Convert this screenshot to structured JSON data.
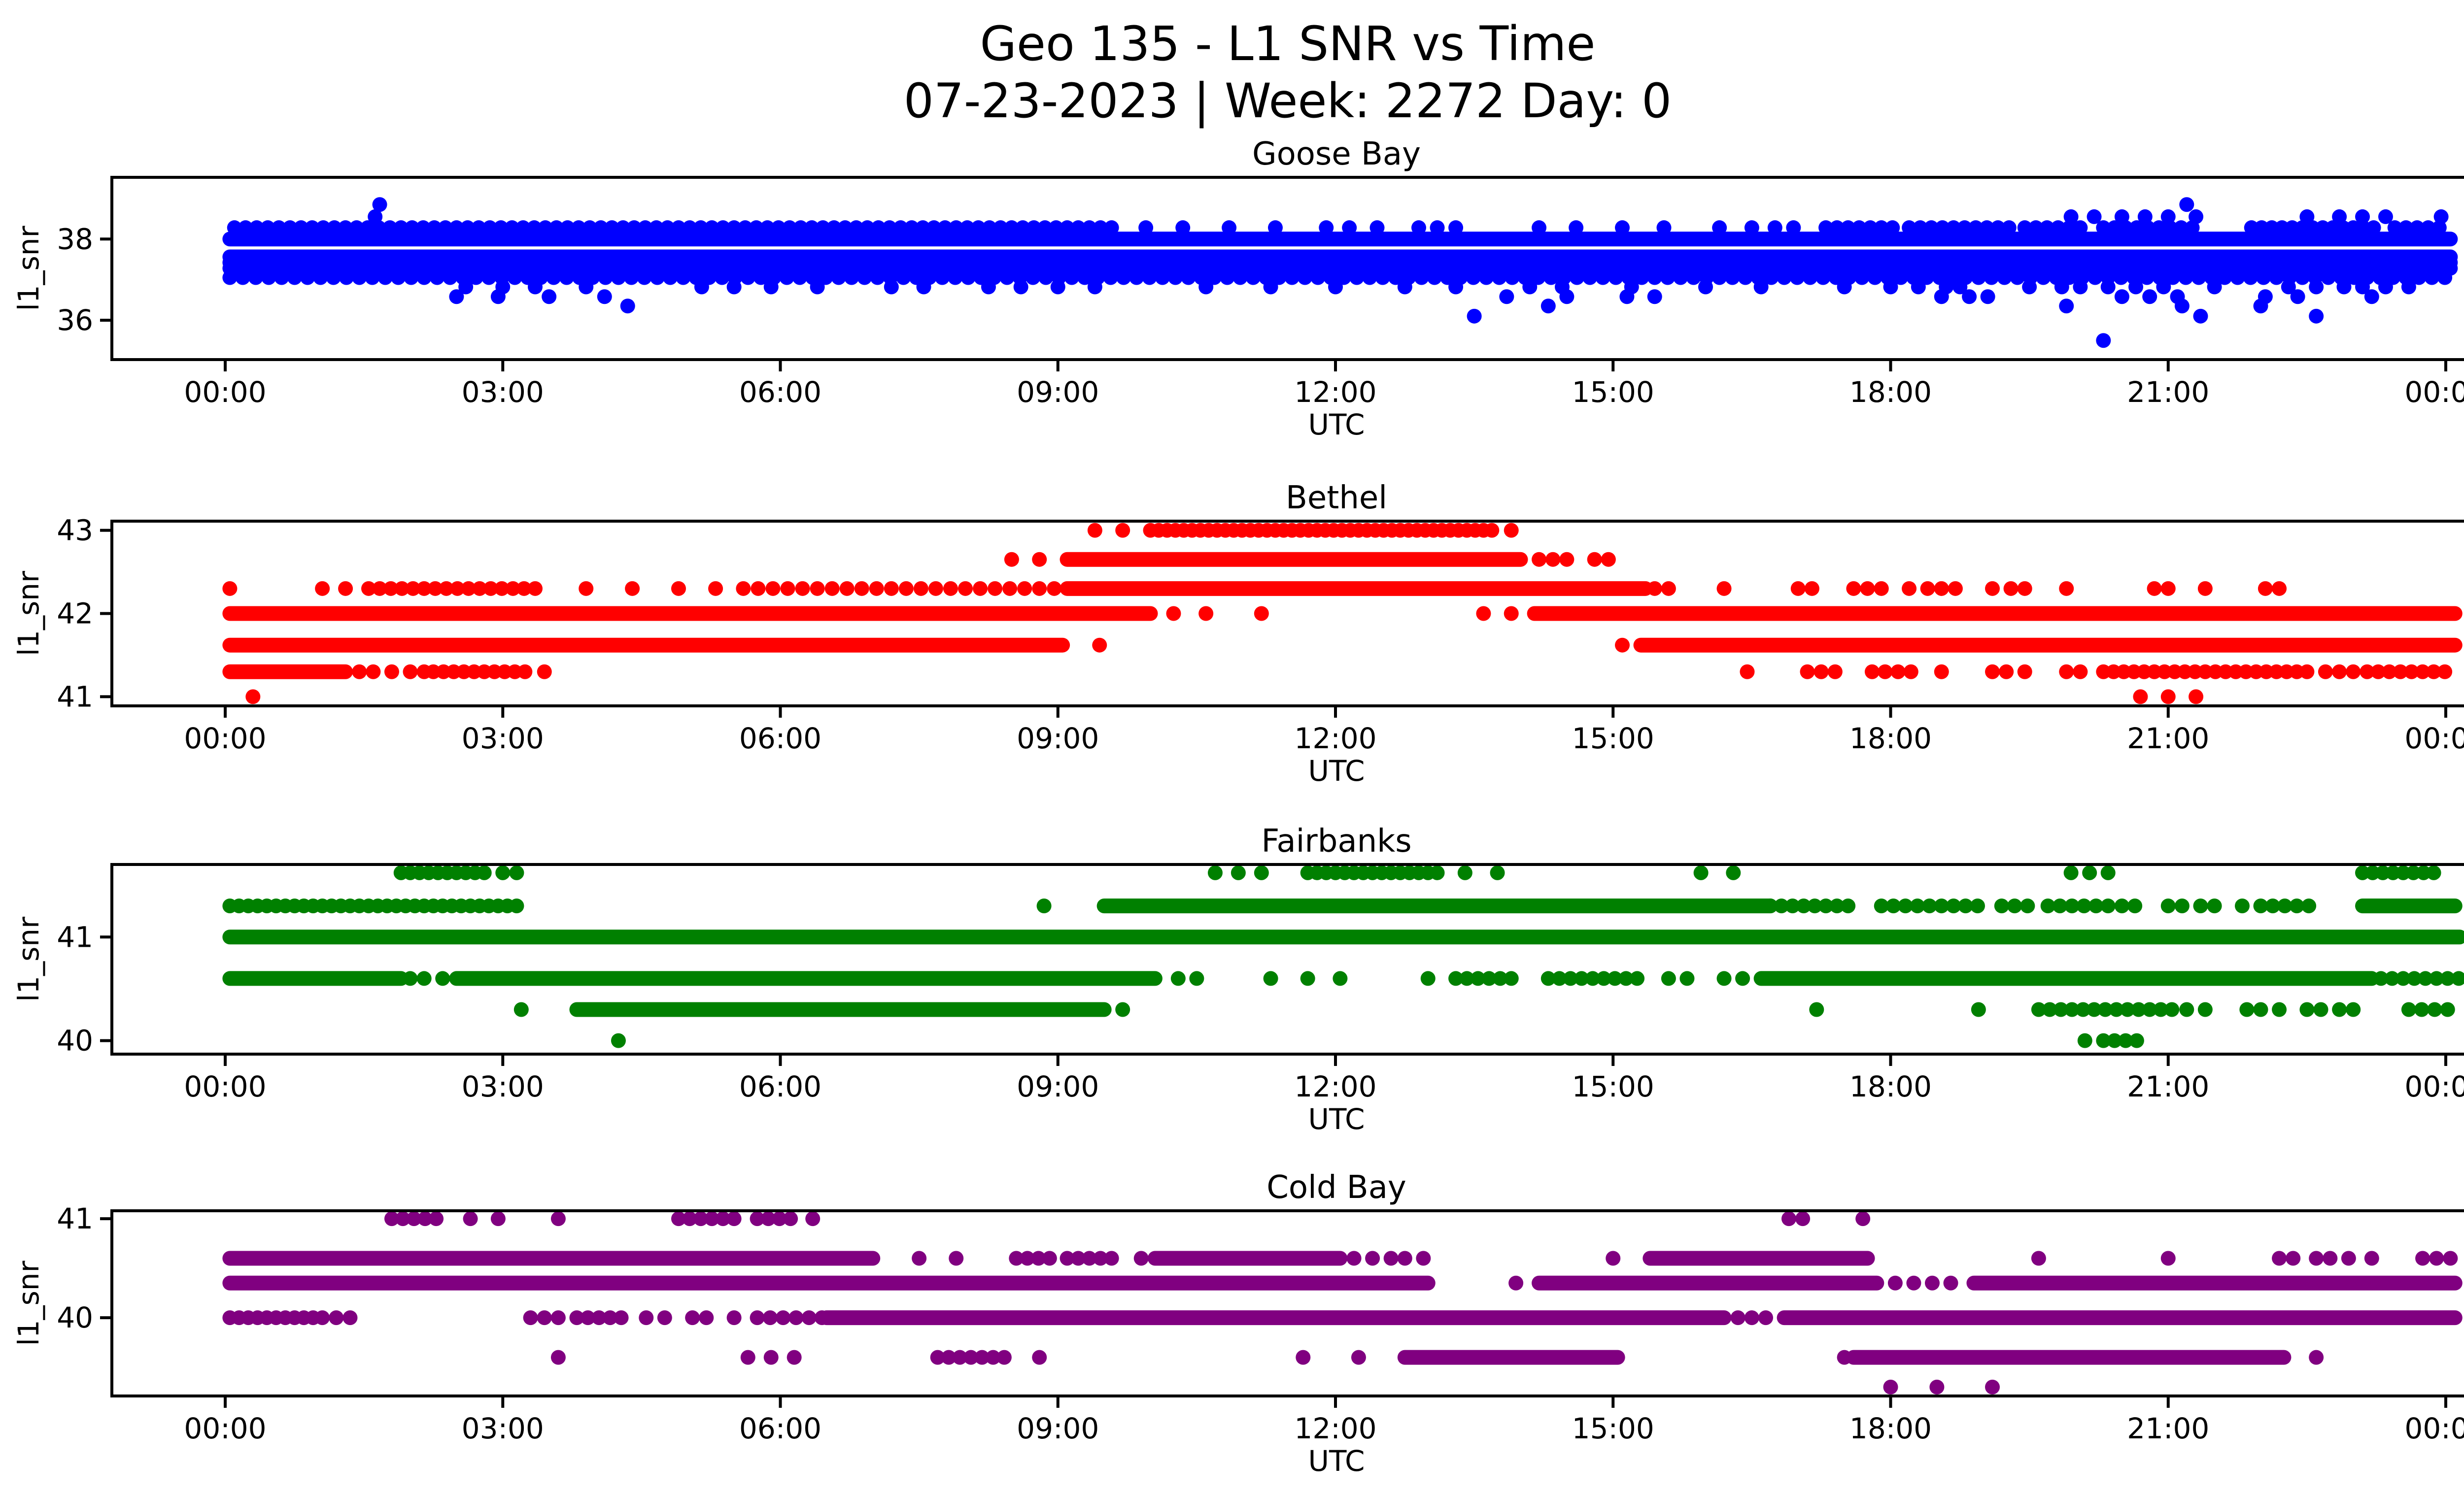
{
  "chart_data": {
    "type": "scatter",
    "title": "Geo 135 - L1 SNR vs Time",
    "subtitle": "07-23-2023 | Week: 2272 Day: 0",
    "xlabel": "UTC",
    "ylabel": "l1_snr",
    "x_tick_labels": [
      "00:00",
      "03:00",
      "06:00",
      "09:00",
      "12:00",
      "15:00",
      "18:00",
      "21:00",
      "00:00"
    ],
    "x_tick_hours": [
      0,
      3,
      6,
      9,
      12,
      15,
      18,
      21,
      24
    ],
    "xlim_hours": [
      -1.22,
      25.25
    ],
    "grid": false,
    "legend": "none",
    "marker_shape": "circle",
    "subplots": [
      {
        "title": "Goose Bay",
        "color": "#0000ff",
        "ylim": [
          35.03,
          39.52
        ],
        "yticks": [
          36,
          38
        ],
        "bands": [
          {
            "y": 38.85,
            "segments": [],
            "points": [
              1.67,
              21.2
            ]
          },
          {
            "y": 38.55,
            "segments": [],
            "points": [
              1.62,
              19.95,
              20.2,
              20.5,
              20.75,
              21.0,
              21.3,
              22.5,
              22.85,
              23.1,
              23.35,
              23.95
            ]
          },
          {
            "y": 38.28,
            "segments": [
              [
                0.1,
                9.6,
                0.12
              ],
              [
                17.3,
                18.05,
                0.12
              ],
              [
                18.2,
                19.3,
                0.12
              ],
              [
                19.45,
                20.1,
                0.12
              ],
              [
                20.3,
                21.35,
                0.12
              ],
              [
                21.9,
                23.3,
                0.11
              ],
              [
                23.45,
                24.0,
                0.12
              ]
            ],
            "points": [
              9.95,
              10.35,
              10.85,
              11.35,
              11.9,
              12.15,
              12.45,
              12.9,
              13.1,
              13.3,
              14.2,
              14.6,
              15.1,
              15.55,
              16.15,
              16.5,
              16.75,
              16.95
            ]
          },
          {
            "y": 38.0,
            "segments": [
              [
                0.05,
                24.05,
                0
              ]
            ],
            "points": []
          },
          {
            "y": 37.56,
            "segments": [
              [
                0.05,
                24.05,
                0
              ]
            ],
            "points": []
          },
          {
            "y": 37.42,
            "segments": [
              [
                0.05,
                24.05,
                0
              ]
            ],
            "points": []
          },
          {
            "y": 37.28,
            "segments": [
              [
                0.05,
                24.05,
                0
              ]
            ],
            "points": []
          },
          {
            "y": 37.05,
            "segments": [
              [
                0.05,
                24.05,
                0.14
              ]
            ],
            "points": []
          },
          {
            "y": 36.82,
            "segments": [],
            "points": [
              2.6,
              3.0,
              3.35,
              3.9,
              5.15,
              5.5,
              5.9,
              6.4,
              7.2,
              7.55,
              8.25,
              8.6,
              9.0,
              9.4,
              10.6,
              11.3,
              12.0,
              12.75,
              13.3,
              14.1,
              14.45,
              15.2,
              16.0,
              16.6,
              17.5,
              18.0,
              18.3,
              18.6,
              18.75,
              19.5,
              19.85,
              20.05,
              20.35,
              20.65,
              20.95,
              21.5,
              22.3,
              22.6,
              22.9,
              23.1,
              23.35,
              23.6
            ]
          },
          {
            "y": 36.58,
            "segments": [],
            "points": [
              2.5,
              2.95,
              3.5,
              4.1,
              13.85,
              14.5,
              15.15,
              15.45,
              18.55,
              18.85,
              19.05,
              20.5,
              20.8,
              21.1,
              22.05,
              22.4,
              23.2
            ]
          },
          {
            "y": 36.35,
            "segments": [],
            "points": [
              4.35,
              14.3,
              19.9,
              21.15,
              22.0
            ]
          },
          {
            "y": 36.1,
            "segments": [],
            "points": [
              13.5,
              21.35,
              22.6
            ]
          },
          {
            "y": 35.5,
            "segments": [],
            "points": [
              20.3
            ]
          }
        ]
      },
      {
        "title": "Bethel",
        "color": "#ff0000",
        "ylim": [
          40.89,
          43.11
        ],
        "yticks": [
          41,
          42,
          43
        ],
        "bands": [
          {
            "y": 43.0,
            "segments": [
              [
                10.0,
                13.7,
                0.09
              ]
            ],
            "points": [
              9.4,
              9.7,
              13.9
            ]
          },
          {
            "y": 42.65,
            "segments": [
              [
                9.1,
                14.0,
                0
              ]
            ],
            "points": [
              8.5,
              8.8,
              14.2,
              14.35,
              14.5,
              14.8,
              14.95
            ]
          },
          {
            "y": 42.3,
            "segments": [
              [
                1.55,
                3.35,
                0.12
              ],
              [
                5.6,
                9.1,
                0.16
              ],
              [
                9.1,
                15.35,
                0
              ]
            ],
            "points": [
              0.05,
              1.05,
              1.3,
              3.9,
              4.4,
              4.9,
              5.3,
              15.45,
              15.6,
              16.2,
              17.0,
              17.15,
              17.6,
              17.75,
              17.9,
              18.2,
              18.4,
              18.55,
              18.7,
              19.1,
              19.3,
              19.45,
              19.9,
              20.85,
              21.0,
              21.4,
              22.05,
              22.2
            ]
          },
          {
            "y": 42.0,
            "segments": [
              [
                0.05,
                10.0,
                0
              ],
              [
                14.15,
                24.1,
                0
              ]
            ],
            "points": [
              10.25,
              10.6,
              11.2,
              13.6,
              13.9
            ]
          },
          {
            "y": 41.62,
            "segments": [
              [
                0.05,
                9.05,
                0
              ],
              [
                15.3,
                24.1,
                0
              ]
            ],
            "points": [
              9.45,
              15.1
            ]
          },
          {
            "y": 41.3,
            "segments": [
              [
                0.05,
                1.3,
                0
              ],
              [
                2.25,
                3.3,
                0.11
              ],
              [
                17.8,
                18.35,
                0.14
              ],
              [
                20.3,
                22.55,
                0.11
              ],
              [
                23.15,
                24.1,
                0.12
              ]
            ],
            "points": [
              1.45,
              1.6,
              1.8,
              2.0,
              2.15,
              3.45,
              16.45,
              17.1,
              17.25,
              17.4,
              18.55,
              19.1,
              19.25,
              19.45,
              19.9,
              20.05,
              22.7,
              22.85,
              23.0
            ]
          },
          {
            "y": 41.0,
            "segments": [],
            "points": [
              0.3,
              20.7,
              21.0,
              21.3
            ]
          }
        ]
      },
      {
        "title": "Fairbanks",
        "color": "#008000",
        "ylim": [
          39.87,
          41.7
        ],
        "yticks": [
          40,
          41
        ],
        "bands": [
          {
            "y": 41.62,
            "segments": [
              [
                1.9,
                2.85,
                0.1
              ],
              [
                11.7,
                13.1,
                0.1
              ],
              [
                23.1,
                23.9,
                0.11
              ]
            ],
            "points": [
              3.0,
              3.15,
              10.7,
              10.95,
              11.2,
              13.4,
              13.75,
              15.95,
              16.3,
              19.95,
              20.15,
              20.35
            ]
          },
          {
            "y": 41.3,
            "segments": [
              [
                0.05,
                3.2,
                0.1
              ],
              [
                9.5,
                16.7,
                0
              ],
              [
                16.7,
                17.6,
                0.12
              ],
              [
                17.9,
                19.0,
                0.13
              ],
              [
                19.2,
                19.5,
                0.14
              ],
              [
                19.7,
                20.4,
                0.13
              ],
              [
                20.5,
                20.7,
                0.14
              ],
              [
                22.0,
                22.6,
                0.13
              ],
              [
                23.1,
                24.1,
                0
              ]
            ],
            "points": [
              8.85,
              21.0,
              21.15,
              21.35,
              21.5,
              21.8
            ]
          },
          {
            "y": 41.0,
            "segments": [
              [
                0.05,
                24.15,
                0
              ]
            ],
            "points": []
          },
          {
            "y": 40.6,
            "segments": [
              [
                0.05,
                1.9,
                0
              ],
              [
                2.5,
                10.05,
                0
              ],
              [
                13.3,
                14.0,
                0.12
              ],
              [
                14.3,
                15.3,
                0.12
              ],
              [
                16.6,
                23.2,
                0
              ],
              [
                23.3,
                24.15,
                0.12
              ]
            ],
            "points": [
              2.0,
              2.15,
              2.35,
              10.3,
              10.5,
              11.3,
              11.7,
              12.05,
              13.0,
              15.6,
              15.8,
              16.2,
              16.4
            ]
          },
          {
            "y": 40.3,
            "segments": [
              [
                3.8,
                9.5,
                0
              ],
              [
                19.6,
                21.05,
                0.12
              ],
              [
                23.6,
                24.1,
                0.14
              ]
            ],
            "points": [
              3.2,
              9.7,
              17.2,
              18.95,
              21.2,
              21.4,
              21.85,
              22.0,
              22.2,
              22.5,
              22.65,
              22.85,
              23.0
            ]
          },
          {
            "y": 40.0,
            "segments": [
              [
                20.3,
                20.75,
                0.12
              ]
            ],
            "points": [
              4.25,
              20.1
            ]
          }
        ]
      },
      {
        "title": "Cold Bay",
        "color": "#800080",
        "ylim": [
          39.21,
          41.08
        ],
        "yticks": [
          40,
          41
        ],
        "bands": [
          {
            "y": 41.0,
            "segments": [
              [
                1.8,
                2.35,
                0.12
              ],
              [
                4.9,
                5.55,
                0.12
              ],
              [
                5.75,
                6.15,
                0.12
              ]
            ],
            "points": [
              2.65,
              2.95,
              3.6,
              6.35,
              16.9,
              17.05,
              17.7
            ]
          },
          {
            "y": 40.6,
            "segments": [
              [
                0.05,
                7.0,
                0
              ],
              [
                8.55,
                9.0,
                0.12
              ],
              [
                9.1,
                9.65,
                0.12
              ],
              [
                10.05,
                12.05,
                0
              ],
              [
                15.4,
                17.75,
                0
              ]
            ],
            "points": [
              7.5,
              7.9,
              9.9,
              12.2,
              12.4,
              12.6,
              12.75,
              12.95,
              15.0,
              19.6,
              21.0,
              22.2,
              22.35,
              22.6,
              22.75,
              22.95,
              23.2,
              23.75,
              23.9,
              24.05
            ]
          },
          {
            "y": 40.35,
            "segments": [
              [
                0.05,
                13.0,
                0
              ],
              [
                14.2,
                17.85,
                0
              ],
              [
                18.9,
                24.1,
                0
              ]
            ],
            "points": [
              13.95,
              18.05,
              18.25,
              18.45,
              18.65
            ]
          },
          {
            "y": 40.0,
            "segments": [
              [
                0.05,
                0.95,
                0.1
              ],
              [
                3.8,
                4.3,
                0.12
              ],
              [
                5.75,
                6.45,
                0.14
              ],
              [
                6.5,
                16.2,
                0
              ],
              [
                16.85,
                24.1,
                0
              ]
            ],
            "points": [
              1.05,
              1.2,
              1.35,
              3.3,
              3.45,
              3.6,
              4.55,
              4.75,
              5.05,
              5.2,
              5.5,
              16.35,
              16.5,
              16.65
            ]
          },
          {
            "y": 39.6,
            "segments": [
              [
                7.7,
                8.5,
                0.12
              ],
              [
                12.75,
                15.05,
                0
              ],
              [
                17.6,
                22.25,
                0
              ]
            ],
            "points": [
              3.6,
              5.65,
              5.9,
              6.15,
              8.8,
              11.65,
              12.25,
              17.5,
              22.6
            ]
          },
          {
            "y": 39.3,
            "segments": [],
            "points": [
              18.0,
              18.5,
              19.1
            ]
          }
        ]
      }
    ]
  }
}
